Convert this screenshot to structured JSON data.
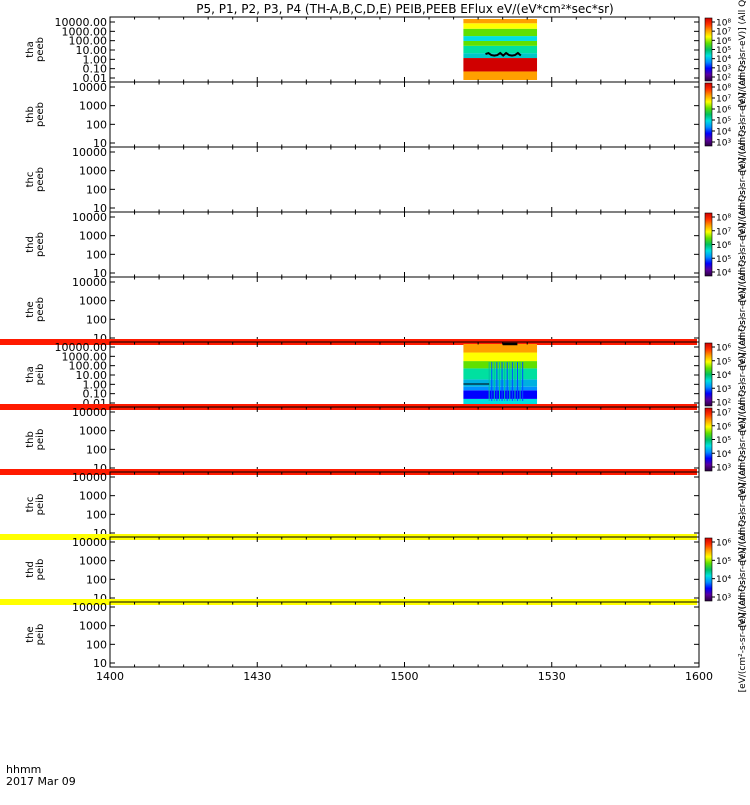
{
  "chart_data": {
    "type": "heatmap",
    "title": "P5, P1, P2, P3, P4 (TH-A,B,C,D,E) PEIB,PEEB EFlux eV/(eV*cm²*sec*sr)",
    "x_ticks": [
      "1400",
      "1430",
      "1500",
      "1530",
      "1600"
    ],
    "x_corner_label": "hhmm",
    "date_label": "2017 Mar 09",
    "time_range_hhmm": [
      "1400",
      "1600"
    ],
    "colorbar_color_stops": [
      "#2b0040",
      "#5a00a0",
      "#0000ff",
      "#0090ff",
      "#00e0e0",
      "#00c060",
      "#60e000",
      "#ffff00",
      "#ffa000",
      "#ff3000",
      "#d00000"
    ],
    "panels": [
      {
        "id": "tha_peeb",
        "line1": "tha",
        "line2": "peeb",
        "y_ticks": [
          "10000.00",
          "1000.00",
          "100.00",
          "10.00",
          "1.00",
          "0.10",
          "0.01"
        ],
        "colorbar": true,
        "colorbar_ticks": [
          "10⁸",
          "10⁷",
          "10⁶",
          "10⁵",
          "10⁴",
          "10³",
          "10²"
        ],
        "colorbar_label": "[eV/(cm²-s-sr-eV)] (All Qs)",
        "spectrogram": {
          "t_start_hhmm": "1512",
          "t_end_hhmm": "1527",
          "bands": [
            {
              "from": 0.0,
              "to": 0.14,
              "color": "#ffa000"
            },
            {
              "from": 0.14,
              "to": 0.36,
              "color": "#d00000"
            },
            {
              "from": 0.36,
              "to": 0.44,
              "color": "#00c8c8"
            },
            {
              "from": 0.44,
              "to": 0.56,
              "color": "#00e0a0"
            },
            {
              "from": 0.56,
              "to": 0.64,
              "color": "#60e000"
            },
            {
              "from": 0.64,
              "to": 0.72,
              "color": "#00e0e0"
            },
            {
              "from": 0.72,
              "to": 0.84,
              "color": "#60e000"
            },
            {
              "from": 0.84,
              "to": 0.93,
              "color": "#ffff00"
            },
            {
              "from": 0.93,
              "to": 1.0,
              "color": "#ffa000"
            }
          ]
        },
        "trace": true
      },
      {
        "id": "thb_peeb",
        "line1": "thb",
        "line2": "peeb",
        "y_ticks": [
          "10000",
          "1000",
          "100",
          "10"
        ],
        "colorbar": true,
        "colorbar_ticks": [
          "10⁸",
          "10⁷",
          "10⁶",
          "10⁵",
          "10⁴",
          "10³"
        ],
        "colorbar_label": "[eV/(cm²-s-sr-eV)] (All Qs)"
      },
      {
        "id": "thc_peeb",
        "line1": "thc",
        "line2": "peeb",
        "y_ticks": [
          "10000",
          "1000",
          "100",
          "10"
        ],
        "colorbar": false,
        "colorbar_label": "[eV/(cm²-s-sr-eV)] (All Qs)"
      },
      {
        "id": "thd_peeb",
        "line1": "thd",
        "line2": "peeb",
        "y_ticks": [
          "10000",
          "1000",
          "100",
          "10"
        ],
        "colorbar": true,
        "colorbar_ticks": [
          "10⁸",
          "10⁷",
          "10⁶",
          "10⁵",
          "10⁴"
        ],
        "colorbar_label": "[eV/(cm²-s-sr-eV)] (All Qs)"
      },
      {
        "id": "the_peeb",
        "line1": "the",
        "line2": "peeb",
        "y_ticks": [
          "10000",
          "1000",
          "100",
          "10"
        ],
        "colorbar": false,
        "colorbar_label": "[eV/(cm²-s-sr-eV)] (All Qs)",
        "bottom_bar_color": "#ff1a00"
      },
      {
        "id": "tha_peib",
        "line1": "tha",
        "line2": "peib",
        "y_ticks": [
          "10000.00",
          "1000.00",
          "100.00",
          "10.00",
          "1.00",
          "0.10",
          "0.01"
        ],
        "colorbar": true,
        "colorbar_ticks": [
          "10⁶",
          "10⁵",
          "10⁴",
          "10³",
          "10²"
        ],
        "colorbar_label": "[eV/(cm²-s-sr-eV)] (All Qs)",
        "spectrogram": {
          "t_start_hhmm": "1512",
          "t_end_hhmm": "1527",
          "bands": [
            {
              "from": 0.0,
              "to": 0.1,
              "color": "#00e0e0"
            },
            {
              "from": 0.1,
              "to": 0.24,
              "color": "#0000ff"
            },
            {
              "from": 0.24,
              "to": 0.3,
              "color": "#0090ff"
            },
            {
              "from": 0.3,
              "to": 0.42,
              "color": "#00b0e0"
            },
            {
              "from": 0.42,
              "to": 0.6,
              "color": "#00e0a0"
            },
            {
              "from": 0.6,
              "to": 0.72,
              "color": "#60e000"
            },
            {
              "from": 0.72,
              "to": 0.86,
              "color": "#ffff00"
            },
            {
              "from": 0.86,
              "to": 1.0,
              "color": "#ffa000"
            }
          ]
        },
        "bottom_bar_color": "#ff1a00",
        "top_marker": true
      },
      {
        "id": "thb_peib",
        "line1": "thb",
        "line2": "peib",
        "y_ticks": [
          "10000",
          "1000",
          "100",
          "10"
        ],
        "colorbar": true,
        "colorbar_ticks": [
          "10⁷",
          "10⁶",
          "10⁵",
          "10⁴",
          "10³"
        ],
        "colorbar_label": "[eV/(cm²-s-sr-eV)] (All Qs)",
        "bottom_bar_color": "#ff1a00"
      },
      {
        "id": "thc_peib",
        "line1": "thc",
        "line2": "peib",
        "y_ticks": [
          "10000",
          "1000",
          "100",
          "10"
        ],
        "colorbar": false,
        "colorbar_label": "[eV/(cm²-s-sr-eV)] (All Qs)",
        "bottom_bar_color": "#ffff00"
      },
      {
        "id": "thd_peib",
        "line1": "thd",
        "line2": "peib",
        "y_ticks": [
          "10000",
          "1000",
          "100",
          "10"
        ],
        "colorbar": true,
        "colorbar_ticks": [
          "10⁶",
          "10⁵",
          "10⁴",
          "10³"
        ],
        "colorbar_label": "[eV/(cm²-s-sr-eV)] (All Qs)",
        "bottom_bar_color": "#ffff00"
      },
      {
        "id": "the_peib",
        "line1": "the",
        "line2": "peib",
        "y_ticks": [
          "10000",
          "1000",
          "100",
          "10"
        ],
        "colorbar": false,
        "colorbar_label": "[eV/(cm²-s-sr-eV)] (All Qs)"
      }
    ]
  }
}
